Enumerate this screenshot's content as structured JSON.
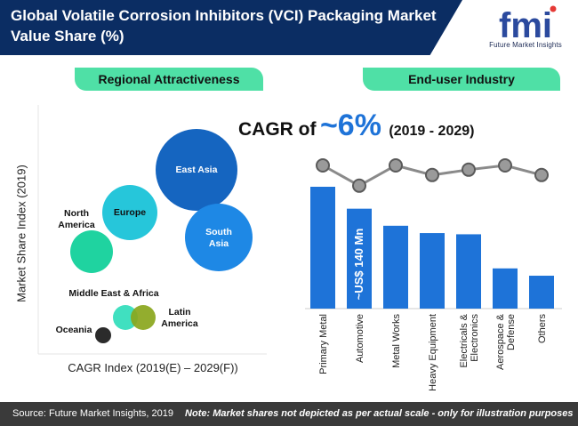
{
  "header": {
    "title": "Global Volatile Corrosion Inhibitors (VCI) Packaging Market Value Share (%)",
    "logo_text": "fmi",
    "logo_caption": "Future Market Insights"
  },
  "left_panel": {
    "heading": "Regional Attractiveness",
    "y_axis_label": "Market Share Index (2019)",
    "x_axis_label": "CAGR Index (2019(E) – 2029(F))"
  },
  "right_panel": {
    "heading": "End-user Industry",
    "cagr_prefix": "CAGR of",
    "cagr_value": "~6%",
    "cagr_period": "(2019 - 2029)",
    "value_annotation": "~US$ 140 Mn"
  },
  "footer": {
    "source": "Source: Future Market Insights, 2019",
    "note": "Note: Market shares not depicted as per actual scale - only for illustration purposes"
  },
  "colors": {
    "header_bg": "#0b2d63",
    "pill_bg": "#4fe0a6",
    "bar": "#1e73d8",
    "trend_line": "#8a8a8a",
    "footer_bg": "#3a3a3a"
  },
  "chart_data": [
    {
      "type": "scatter",
      "bubbles": [
        {
          "label": "East Asia",
          "color": "#1565c0"
        },
        {
          "label": "South Asia",
          "color": "#1e88e5"
        },
        {
          "label": "Europe",
          "color": "#26c6da"
        },
        {
          "label": "North America",
          "color": "#1fd3a0"
        },
        {
          "label": "Middle East & Africa",
          "color": "#40e0c0"
        },
        {
          "label": "Latin America",
          "color": "#8aa61c"
        },
        {
          "label": "Oceania",
          "color": "#2b2b2b"
        }
      ],
      "xlabel": "CAGR Index (2019(E) – 2029(F))",
      "ylabel": "Market Share Index (2019)"
    },
    {
      "type": "bar",
      "categories": [
        "Primary Metal",
        "Automotive",
        "Metal Works",
        "Heavy Equipment",
        "Electricals & Electronics",
        "Aerospace & Defense",
        "Others"
      ],
      "values": [
        100,
        82,
        68,
        62,
        61,
        33,
        27
      ],
      "trend": [
        100,
        62,
        100,
        82,
        92,
        100,
        82
      ],
      "annotation": "~US$ 140 Mn",
      "annotation_bar": "Automotive"
    }
  ]
}
